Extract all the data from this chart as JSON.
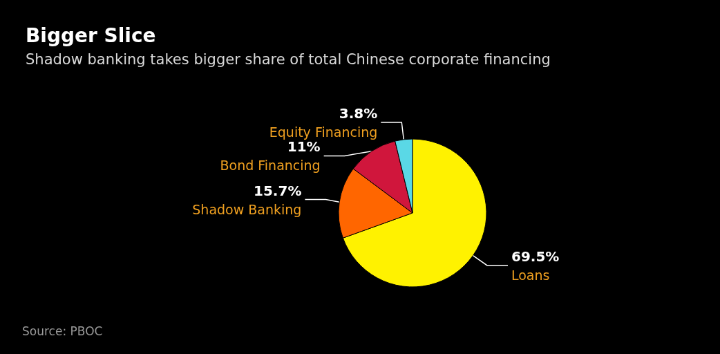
{
  "chart_data": {
    "type": "pie",
    "title": "Bigger Slice",
    "subtitle": "Shadow banking takes bigger share of total Chinese corporate financing",
    "categories": [
      "Loans",
      "Shadow Banking",
      "Bond Financing",
      "Equity Financing"
    ],
    "values": [
      69.5,
      15.7,
      11,
      3.8
    ],
    "value_labels": [
      "69.5%",
      "15.7%",
      "11%",
      "3.8%"
    ],
    "colors": [
      "#fff200",
      "#ff6600",
      "#d0163c",
      "#5ad8e6"
    ],
    "legend": false,
    "annotations": [
      "Source: PBOC"
    ]
  }
}
